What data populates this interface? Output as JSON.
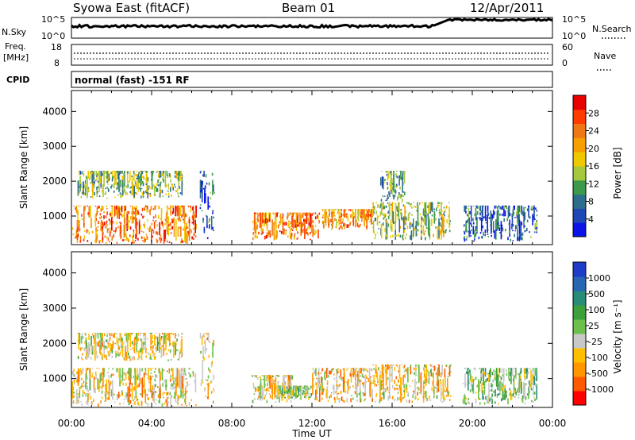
{
  "header": {
    "station": "Syowa East (fitACF)",
    "beam": "Beam 01",
    "date": "12/Apr/2011"
  },
  "noise_panel": {
    "left_label": "N.Sky",
    "right_label": "N.Search",
    "left_ticks": [
      "10^5",
      "10^0"
    ],
    "right_ticks": [
      "10^5",
      "10^0"
    ]
  },
  "freq_panel": {
    "left_label_line1": "Freq.",
    "left_label_line2": "[MHz]",
    "right_label": "Nave",
    "left_ticks": [
      "18",
      "8"
    ],
    "right_ticks": [
      "60",
      "0"
    ]
  },
  "cpid_panel": {
    "label": "CPID",
    "text": "normal (fast) -151 RF"
  },
  "xaxis": {
    "label": "Time UT",
    "ticks": [
      "00:00",
      "04:00",
      "08:00",
      "12:00",
      "16:00",
      "20:00",
      "00:00"
    ]
  },
  "colors": {
    "power_scale": [
      "#0a14e6",
      "#1e46b4",
      "#2e6e8c",
      "#3c9a4a",
      "#a6c83c",
      "#f0c800",
      "#f5a000",
      "#f07814",
      "#ff3c00",
      "#e60000"
    ],
    "velocity_scale": [
      "#ff0000",
      "#ff5a00",
      "#ff9600",
      "#ffbe00",
      "#c8c8c8",
      "#6ac04a",
      "#3ca03c",
      "#288c78",
      "#2866b4",
      "#1e3cc8"
    ]
  },
  "chart_data": [
    {
      "type": "heatmap",
      "name_key": "power",
      "title": "",
      "xlabel": "Time UT",
      "ylabel": "Slant Range [km]",
      "xlim": [
        0,
        24
      ],
      "ylim": [
        180,
        4600
      ],
      "y_ticks": [
        "1000",
        "2000",
        "3000",
        "4000"
      ],
      "y_tick_values": [
        1000,
        2000,
        3000,
        4000
      ],
      "colorbar": {
        "label": "Power [dB]",
        "ticks": [
          "4",
          "8",
          "12",
          "16",
          "20",
          "24",
          "28"
        ],
        "range": [
          0,
          30
        ]
      },
      "regions": [
        {
          "t0": 0.0,
          "t1": 6.2,
          "r0": 200,
          "r1": 1300,
          "v": 22
        },
        {
          "t0": 0.3,
          "t1": 5.5,
          "r0": 1500,
          "r1": 2300,
          "v": 12
        },
        {
          "t0": 6.4,
          "t1": 7.1,
          "r0": 250,
          "r1": 2300,
          "v": 6
        },
        {
          "t0": 9.0,
          "t1": 12.4,
          "r0": 300,
          "r1": 1100,
          "v": 22
        },
        {
          "t0": 12.5,
          "t1": 15.0,
          "r0": 600,
          "r1": 1200,
          "v": 21
        },
        {
          "t0": 15.0,
          "t1": 18.9,
          "r0": 300,
          "r1": 1400,
          "v": 13
        },
        {
          "t0": 15.4,
          "t1": 16.6,
          "r0": 1400,
          "r1": 2300,
          "v": 10
        },
        {
          "t0": 19.5,
          "t1": 23.2,
          "r0": 250,
          "r1": 1300,
          "v": 6
        }
      ]
    },
    {
      "type": "heatmap",
      "name_key": "velocity",
      "title": "",
      "xlabel": "Time UT",
      "ylabel": "Slant Range [km]",
      "xlim": [
        0,
        24
      ],
      "ylim": [
        180,
        4600
      ],
      "y_ticks": [
        "1000",
        "2000",
        "3000",
        "4000"
      ],
      "y_tick_values": [
        1000,
        2000,
        3000,
        4000
      ],
      "colorbar": {
        "label": "Velocity [m s⁻¹]",
        "ticks": [
          "-1000",
          "-500",
          "-100",
          "-25",
          "25",
          "100",
          "500",
          "1000"
        ],
        "range": [
          -1250,
          1250
        ]
      },
      "regions": [
        {
          "t0": 0.0,
          "t1": 6.2,
          "r0": 200,
          "r1": 1300,
          "v": -300
        },
        {
          "t0": 0.3,
          "t1": 5.5,
          "r0": 1500,
          "r1": 2300,
          "v": -200
        },
        {
          "t0": 6.4,
          "t1": 7.1,
          "r0": 250,
          "r1": 2300,
          "v": -250
        },
        {
          "t0": 9.0,
          "t1": 11.0,
          "r0": 300,
          "r1": 1100,
          "v": -250
        },
        {
          "t0": 10.2,
          "t1": 12.0,
          "r0": 400,
          "r1": 800,
          "v": 60
        },
        {
          "t0": 12.0,
          "t1": 15.0,
          "r0": 300,
          "r1": 1300,
          "v": -350
        },
        {
          "t0": 15.0,
          "t1": 18.9,
          "r0": 300,
          "r1": 1400,
          "v": -300
        },
        {
          "t0": 19.5,
          "t1": 23.2,
          "r0": 250,
          "r1": 1300,
          "v": 150
        }
      ]
    }
  ]
}
